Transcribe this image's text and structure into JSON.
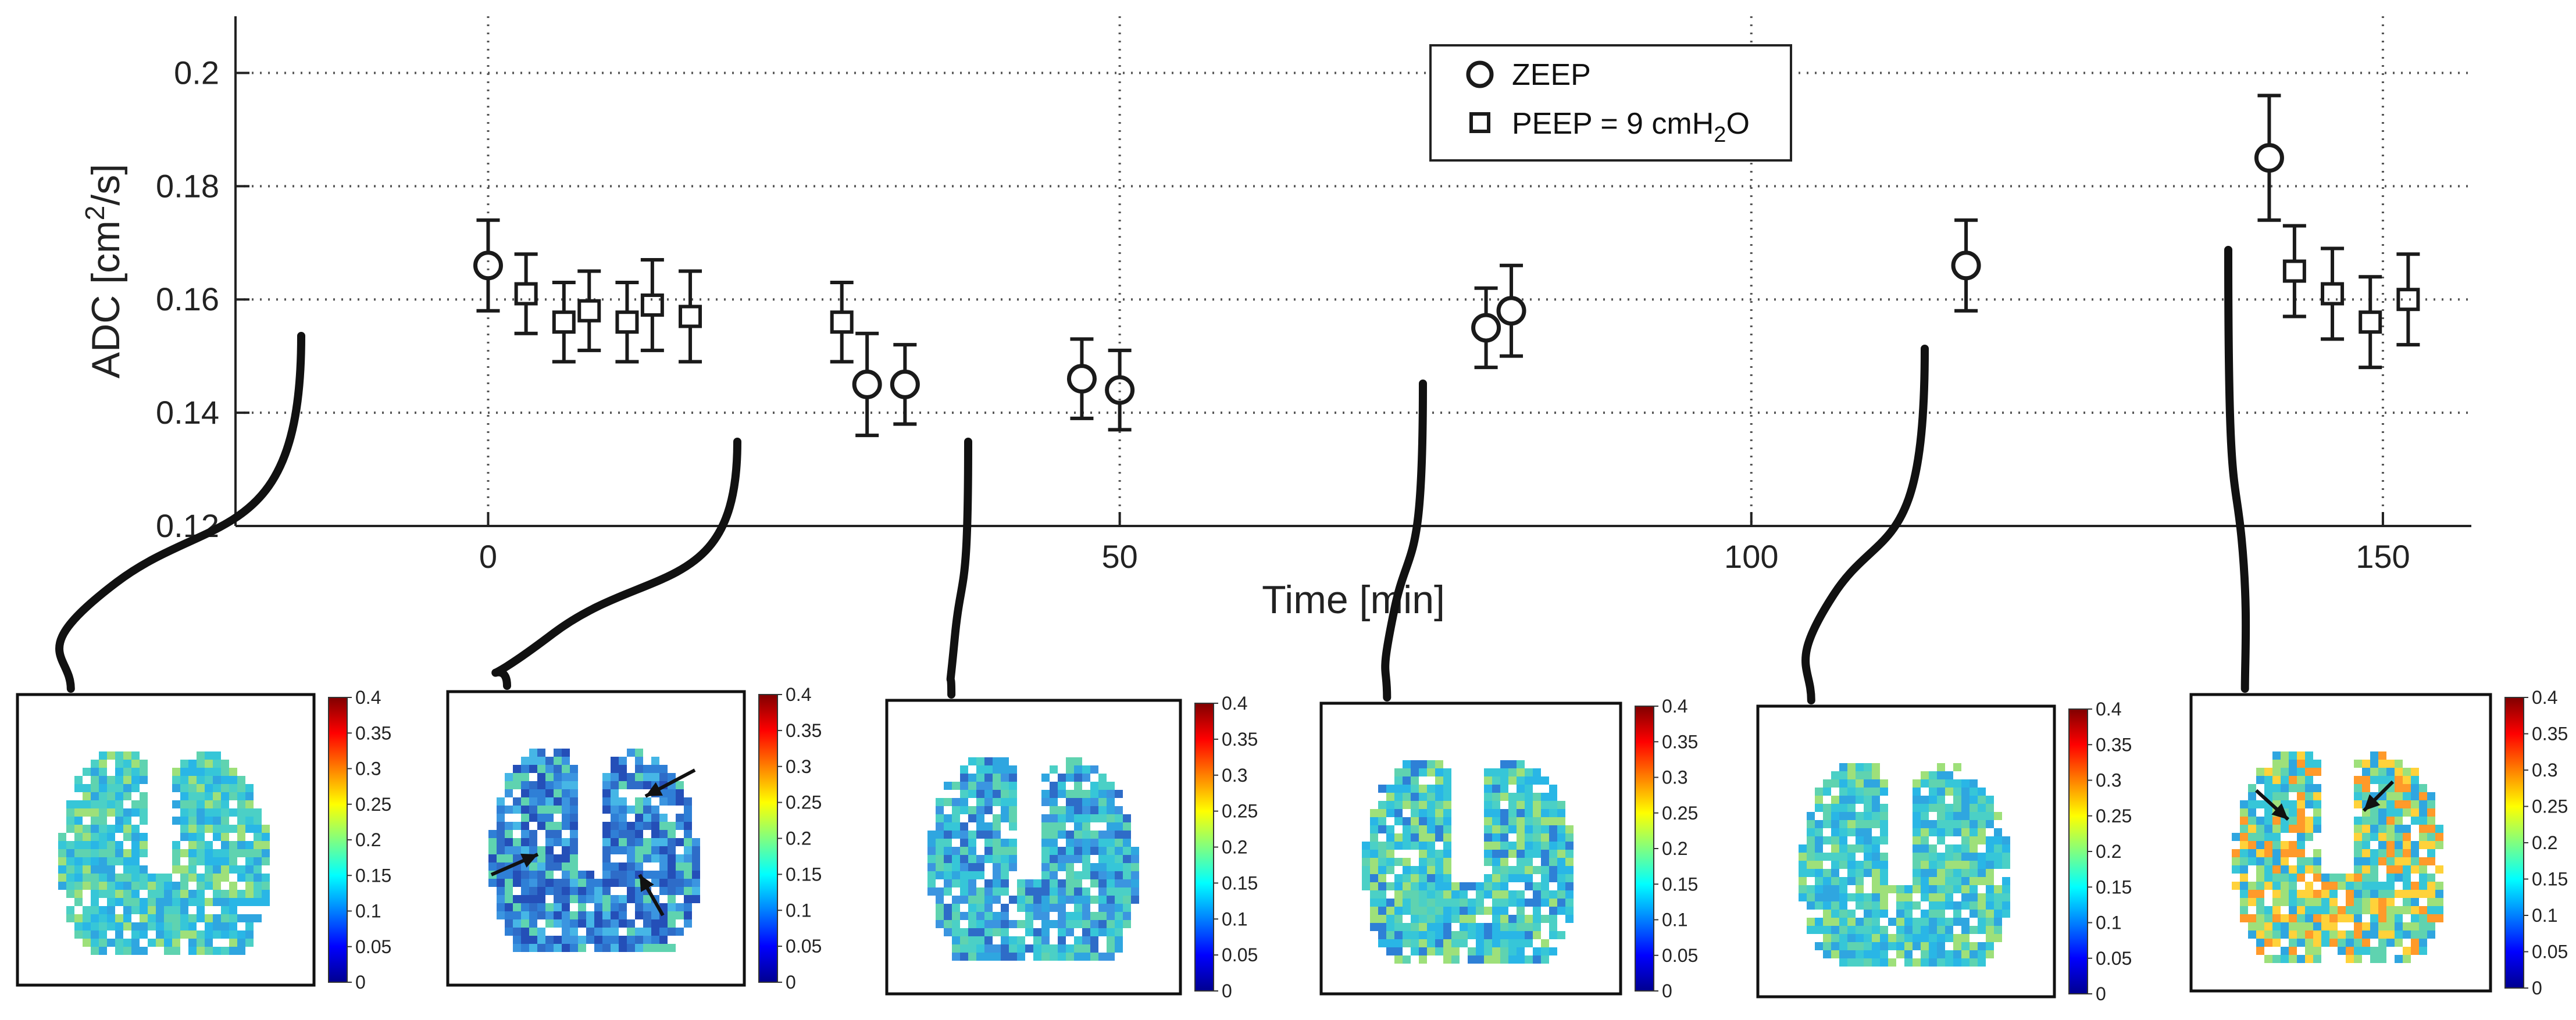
{
  "chart_data": {
    "type": "scatter",
    "xlabel": "Time [min]",
    "ylabel": "ADC [cm²/s]",
    "xlim": [
      -20,
      157
    ],
    "ylim": [
      0.12,
      0.21
    ],
    "xticks": [
      0,
      50,
      100,
      150
    ],
    "yticks": [
      0.12,
      0.14,
      0.16,
      0.18,
      0.2
    ],
    "grid": true,
    "legend_position": "top-center",
    "series": [
      {
        "name": "ZEEP",
        "marker": "circle",
        "x": [
          0,
          30,
          33,
          47,
          50,
          79,
          81,
          117,
          141
        ],
        "y": [
          0.166,
          0.145,
          0.145,
          0.146,
          0.144,
          0.155,
          0.158,
          0.166,
          0.185
        ],
        "err": [
          0.008,
          0.009,
          0.007,
          0.007,
          0.007,
          0.007,
          0.008,
          0.008,
          0.011
        ]
      },
      {
        "name": "PEEP = 9 cmH2O",
        "marker": "square",
        "x": [
          3,
          6,
          8,
          11,
          13,
          16,
          28,
          143,
          146,
          149,
          152
        ],
        "y": [
          0.161,
          0.156,
          0.158,
          0.156,
          0.159,
          0.157,
          0.156,
          0.165,
          0.161,
          0.156,
          0.16
        ],
        "err": [
          0.007,
          0.007,
          0.007,
          0.007,
          0.008,
          0.008,
          0.007,
          0.008,
          0.008,
          0.008,
          0.008
        ]
      }
    ],
    "colorbar_ticks": [
      "0.4",
      "0.35",
      "0.3",
      "0.25",
      "0.2",
      "0.15",
      "0.1",
      "0.05",
      "0"
    ],
    "maps_linked_to_times": [
      0,
      30,
      48,
      80,
      117,
      141
    ],
    "colors": {
      "marker": "#1a1a1a",
      "grid": "#555555",
      "colormap": [
        "#00008f",
        "#0000ff",
        "#0080ff",
        "#00ffff",
        "#80ff80",
        "#ffff00",
        "#ff8000",
        "#ff0000",
        "#800000"
      ]
    }
  }
}
